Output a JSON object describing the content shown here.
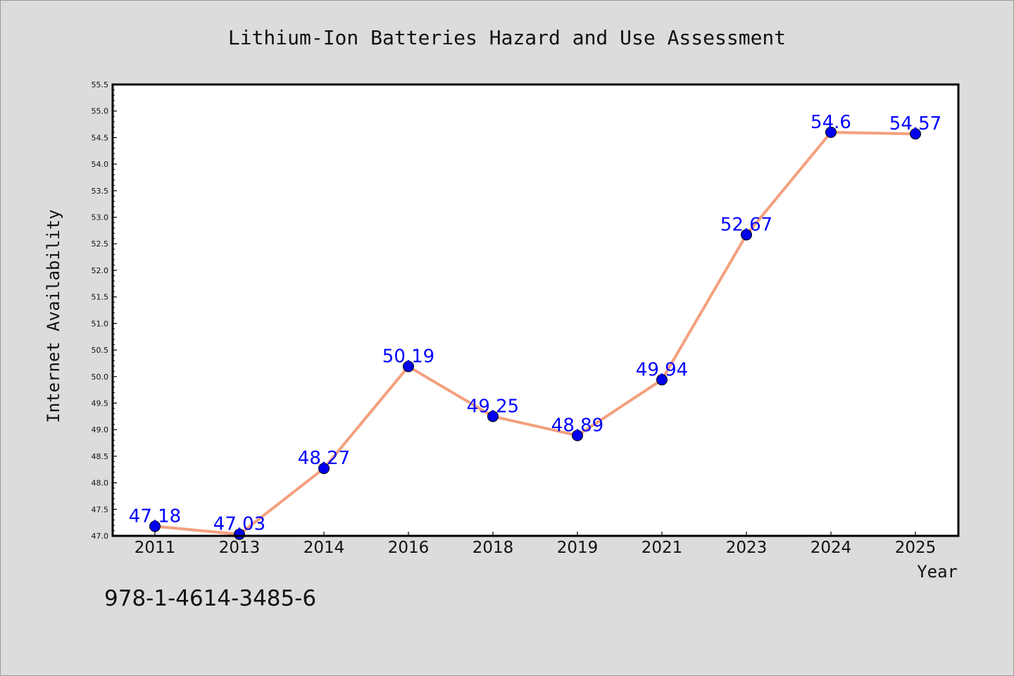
{
  "chart_data": {
    "type": "line",
    "title": "Lithium-Ion Batteries Hazard and Use Assessment",
    "xlabel": "Year",
    "ylabel": "Internet Availability",
    "categories": [
      "2011",
      "2013",
      "2014",
      "2016",
      "2018",
      "2019",
      "2021",
      "2023",
      "2024",
      "2025"
    ],
    "values": [
      47.18,
      47.03,
      48.27,
      50.19,
      49.25,
      48.89,
      49.94,
      52.67,
      54.6,
      54.57
    ],
    "data_labels": [
      "47.18",
      "47.03",
      "48.27",
      "50.19",
      "49.25",
      "48.89",
      "49.94",
      "52.67",
      "54.6",
      "54.57"
    ],
    "ylim": [
      47.0,
      55.5
    ],
    "yticks": [
      "47.0",
      "47.5",
      "48.0",
      "48.5",
      "49.0",
      "49.5",
      "50.0",
      "50.5",
      "51.0",
      "51.5",
      "52.0",
      "52.5",
      "53.0",
      "53.5",
      "54.0",
      "54.5",
      "55.0",
      "55.5"
    ],
    "grid": false,
    "legend": "none",
    "line_color": "#f4a07e",
    "marker_color": "#0000ee",
    "label_color": "#0000ff"
  },
  "footnote": "978-1-4614-3485-6"
}
